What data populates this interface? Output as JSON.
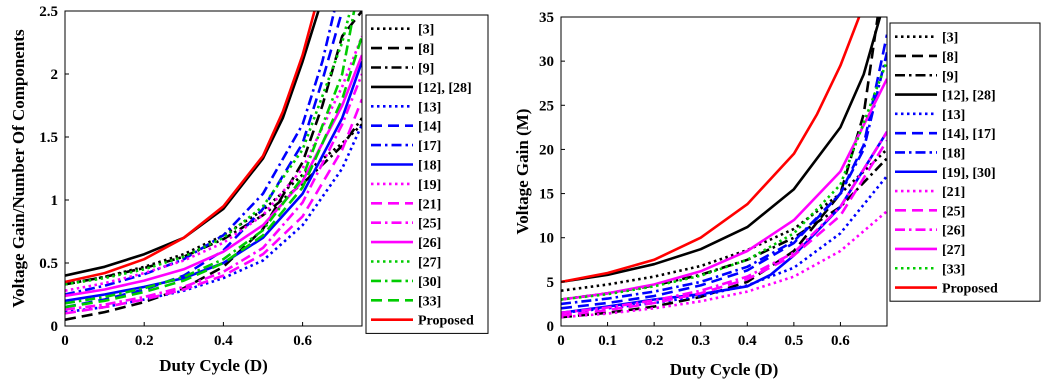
{
  "chart_data": [
    {
      "type": "line",
      "title": "",
      "xlabel": "Duty Cycle (D)",
      "ylabel": "Voltage Gain/Number Of Components",
      "xlim": [
        0,
        0.75
      ],
      "ylim": [
        0,
        2.5
      ],
      "xticks": [
        "0",
        "0.2",
        "0.4",
        "0.6"
      ],
      "xtick_values": [
        0,
        0.2,
        0.4,
        0.6
      ],
      "yticks": [
        "0",
        "0.5",
        "1",
        "1.5",
        "2",
        "2.5"
      ],
      "ytick_values": [
        0,
        0.5,
        1,
        1.5,
        2,
        2.5
      ],
      "grid": false,
      "legend_position": "right, outside",
      "series": [
        {
          "name": "[3]",
          "color": "#000000",
          "dash": "dot",
          "x": [
            0,
            0.1,
            0.2,
            0.3,
            0.4,
            0.5,
            0.6,
            0.7,
            0.75
          ],
          "y": [
            0.33,
            0.39,
            0.47,
            0.57,
            0.72,
            0.92,
            1.2,
            1.45,
            1.6
          ]
        },
        {
          "name": "[8]",
          "color": "#000000",
          "dash": "dash",
          "x": [
            0,
            0.1,
            0.2,
            0.3,
            0.4,
            0.5,
            0.6,
            0.65,
            0.7,
            0.75
          ],
          "y": [
            0.05,
            0.11,
            0.19,
            0.3,
            0.47,
            0.77,
            1.3,
            1.75,
            2.3,
            2.5
          ]
        },
        {
          "name": "[9]",
          "color": "#000000",
          "dash": "dashdot",
          "x": [
            0,
            0.1,
            0.2,
            0.3,
            0.4,
            0.5,
            0.6,
            0.7,
            0.75
          ],
          "y": [
            0.33,
            0.39,
            0.46,
            0.55,
            0.69,
            0.88,
            1.13,
            1.43,
            1.65
          ]
        },
        {
          "name": "[12], [28]",
          "color": "#000000",
          "dash": "solid",
          "x": [
            0,
            0.1,
            0.2,
            0.3,
            0.4,
            0.5,
            0.55,
            0.6,
            0.64
          ],
          "y": [
            0.4,
            0.47,
            0.57,
            0.7,
            0.93,
            1.33,
            1.65,
            2.1,
            2.5
          ]
        },
        {
          "name": "[13]",
          "color": "#0000ff",
          "dash": "dot",
          "x": [
            0,
            0.1,
            0.2,
            0.3,
            0.4,
            0.5,
            0.6,
            0.7,
            0.75
          ],
          "y": [
            0.11,
            0.15,
            0.21,
            0.28,
            0.38,
            0.52,
            0.8,
            1.25,
            1.6
          ]
        },
        {
          "name": "[14]",
          "color": "#0000ff",
          "dash": "dash",
          "x": [
            0,
            0.1,
            0.2,
            0.3,
            0.4,
            0.5,
            0.6,
            0.65,
            0.7
          ],
          "y": [
            0.15,
            0.21,
            0.29,
            0.4,
            0.6,
            0.93,
            1.45,
            1.95,
            2.5
          ]
        },
        {
          "name": "[17]",
          "color": "#0000ff",
          "dash": "dashdot",
          "x": [
            0,
            0.1,
            0.2,
            0.3,
            0.4,
            0.5,
            0.6,
            0.65,
            0.68
          ],
          "y": [
            0.25,
            0.32,
            0.41,
            0.53,
            0.72,
            1.05,
            1.6,
            2.1,
            2.5
          ]
        },
        {
          "name": "[18]",
          "color": "#0000ff",
          "dash": "solid",
          "x": [
            0,
            0.1,
            0.2,
            0.3,
            0.4,
            0.5,
            0.6,
            0.7,
            0.75
          ],
          "y": [
            0.2,
            0.25,
            0.31,
            0.38,
            0.5,
            0.7,
            1.05,
            1.65,
            2.1
          ]
        },
        {
          "name": "[19]",
          "color": "#ff00ff",
          "dash": "dot",
          "x": [
            0,
            0.1,
            0.2,
            0.3,
            0.4,
            0.5,
            0.6,
            0.7,
            0.75
          ],
          "y": [
            0.28,
            0.34,
            0.42,
            0.52,
            0.66,
            0.88,
            1.25,
            1.9,
            2.3
          ]
        },
        {
          "name": "[21]",
          "color": "#ff00ff",
          "dash": "dash",
          "x": [
            0,
            0.1,
            0.2,
            0.3,
            0.4,
            0.5,
            0.6,
            0.7,
            0.75
          ],
          "y": [
            0.1,
            0.15,
            0.21,
            0.29,
            0.4,
            0.57,
            0.87,
            1.4,
            1.8
          ]
        },
        {
          "name": "[25]",
          "color": "#ff00ff",
          "dash": "dashdot",
          "x": [
            0,
            0.1,
            0.2,
            0.3,
            0.4,
            0.5,
            0.6,
            0.7,
            0.75
          ],
          "y": [
            0.13,
            0.17,
            0.23,
            0.31,
            0.43,
            0.62,
            0.98,
            1.6,
            2.0
          ]
        },
        {
          "name": "[26]",
          "color": "#ff00ff",
          "dash": "solid",
          "x": [
            0,
            0.1,
            0.2,
            0.3,
            0.4,
            0.5,
            0.6,
            0.7,
            0.75
          ],
          "y": [
            0.24,
            0.29,
            0.36,
            0.45,
            0.59,
            0.8,
            1.15,
            1.75,
            2.15
          ]
        },
        {
          "name": "[27]",
          "color": "#00cc00",
          "dash": "dot",
          "x": [
            0,
            0.1,
            0.2,
            0.3,
            0.4,
            0.5,
            0.6,
            0.7,
            0.72
          ],
          "y": [
            0.33,
            0.38,
            0.45,
            0.55,
            0.7,
            0.95,
            1.4,
            2.25,
            2.5
          ]
        },
        {
          "name": "[30]",
          "color": "#00cc00",
          "dash": "dashdot",
          "x": [
            0,
            0.1,
            0.2,
            0.3,
            0.4,
            0.5,
            0.6,
            0.7,
            0.73
          ],
          "y": [
            0.18,
            0.23,
            0.3,
            0.39,
            0.53,
            0.76,
            1.18,
            2.0,
            2.5
          ]
        },
        {
          "name": "[33]",
          "color": "#00cc00",
          "dash": "dash",
          "x": [
            0,
            0.1,
            0.2,
            0.3,
            0.4,
            0.5,
            0.6,
            0.7,
            0.75
          ],
          "y": [
            0.15,
            0.2,
            0.27,
            0.36,
            0.5,
            0.72,
            1.1,
            1.8,
            2.3
          ]
        },
        {
          "name": "Proposed",
          "color": "#ff0000",
          "dash": "solid",
          "x": [
            0,
            0.1,
            0.2,
            0.3,
            0.4,
            0.5,
            0.55,
            0.6,
            0.63
          ],
          "y": [
            0.35,
            0.42,
            0.53,
            0.7,
            0.95,
            1.35,
            1.7,
            2.15,
            2.5
          ]
        }
      ]
    },
    {
      "type": "line",
      "title": "",
      "xlabel": "Duty Cycle (D)",
      "ylabel": "Voltage Gain (M)",
      "xlim": [
        0,
        0.7
      ],
      "ylim": [
        0,
        35
      ],
      "xticks": [
        "0",
        "0.1",
        "0.2",
        "0.3",
        "0.4",
        "0.5",
        "0.6"
      ],
      "xtick_values": [
        0,
        0.1,
        0.2,
        0.3,
        0.4,
        0.5,
        0.6
      ],
      "yticks": [
        "0",
        "5",
        "10",
        "15",
        "20",
        "25",
        "30",
        "35"
      ],
      "ytick_values": [
        0,
        5,
        10,
        15,
        20,
        25,
        30,
        35
      ],
      "grid": false,
      "legend_position": "right, outside",
      "series": [
        {
          "name": "[3]",
          "color": "#000000",
          "dash": "dot",
          "x": [
            0,
            0.1,
            0.2,
            0.3,
            0.4,
            0.5,
            0.6,
            0.7
          ],
          "y": [
            4,
            4.7,
            5.6,
            6.8,
            8.6,
            11,
            15,
            20
          ]
        },
        {
          "name": "[8]",
          "color": "#000000",
          "dash": "dash",
          "x": [
            0,
            0.1,
            0.2,
            0.3,
            0.4,
            0.5,
            0.6,
            0.65,
            0.68
          ],
          "y": [
            1,
            1.5,
            2.2,
            3.3,
            5,
            8.5,
            15,
            24,
            35
          ]
        },
        {
          "name": "[9]",
          "color": "#000000",
          "dash": "dashdot",
          "x": [
            0,
            0.1,
            0.2,
            0.3,
            0.4,
            0.5,
            0.6,
            0.7
          ],
          "y": [
            3,
            3.7,
            4.6,
            5.8,
            7.5,
            10,
            13.5,
            19
          ]
        },
        {
          "name": "[12], [28]",
          "color": "#000000",
          "dash": "solid",
          "x": [
            0,
            0.1,
            0.2,
            0.3,
            0.4,
            0.5,
            0.6,
            0.65,
            0.685
          ],
          "y": [
            5,
            5.8,
            7,
            8.7,
            11.2,
            15.5,
            22.5,
            28.5,
            35
          ]
        },
        {
          "name": "[13]",
          "color": "#0000ff",
          "dash": "dot",
          "x": [
            0,
            0.1,
            0.2,
            0.3,
            0.4,
            0.5,
            0.6,
            0.7
          ],
          "y": [
            1.5,
            2,
            2.6,
            3.4,
            4.6,
            6.6,
            10.5,
            17
          ]
        },
        {
          "name": "[14], [17]",
          "color": "#0000ff",
          "dash": "dash",
          "x": [
            0,
            0.1,
            0.2,
            0.3,
            0.4,
            0.5,
            0.6,
            0.65,
            0.7
          ],
          "y": [
            2,
            2.6,
            3.4,
            4.6,
            6.3,
            9.4,
            15,
            20.5,
            33
          ]
        },
        {
          "name": "[18]",
          "color": "#0000ff",
          "dash": "dashdot",
          "x": [
            0,
            0.1,
            0.2,
            0.3,
            0.4,
            0.5,
            0.6,
            0.65,
            0.7
          ],
          "y": [
            2.5,
            3.1,
            3.9,
            5,
            6.7,
            9.6,
            15,
            20,
            31
          ]
        },
        {
          "name": "[19], [30]",
          "color": "#0000ff",
          "dash": "solid",
          "x": [
            0,
            0.1,
            0.2,
            0.3,
            0.4,
            0.45,
            0.5,
            0.6,
            0.7
          ],
          "y": [
            1.5,
            2.2,
            3,
            3.6,
            4.5,
            5.8,
            8,
            13.5,
            22
          ]
        },
        {
          "name": "[21]",
          "color": "#ff00ff",
          "dash": "dot",
          "x": [
            0,
            0.1,
            0.2,
            0.3,
            0.4,
            0.5,
            0.6,
            0.7
          ],
          "y": [
            1,
            1.4,
            2,
            2.8,
            3.9,
            5.6,
            8.5,
            13
          ]
        },
        {
          "name": "[25]",
          "color": "#ff00ff",
          "dash": "dash",
          "x": [
            0,
            0.1,
            0.2,
            0.3,
            0.4,
            0.5,
            0.6,
            0.7
          ],
          "y": [
            1.2,
            1.8,
            2.6,
            3.7,
            5.3,
            8,
            12.5,
            21
          ]
        },
        {
          "name": "[26]",
          "color": "#ff00ff",
          "dash": "dashdot",
          "x": [
            0,
            0.1,
            0.2,
            0.3,
            0.4,
            0.5,
            0.6,
            0.7
          ],
          "y": [
            1.5,
            2.1,
            2.9,
            4,
            5.6,
            8.3,
            13.5,
            22
          ]
        },
        {
          "name": "[27]",
          "color": "#ff00ff",
          "dash": "solid",
          "x": [
            0,
            0.1,
            0.2,
            0.3,
            0.4,
            0.5,
            0.6,
            0.7
          ],
          "y": [
            3,
            3.7,
            4.7,
            6.2,
            8.5,
            12,
            17.5,
            28
          ]
        },
        {
          "name": "[33]",
          "color": "#00cc00",
          "dash": "dot",
          "x": [
            0,
            0.1,
            0.2,
            0.3,
            0.4,
            0.5,
            0.6,
            0.7
          ],
          "y": [
            3,
            3.6,
            4.5,
            5.7,
            7.5,
            10.5,
            16,
            30
          ]
        },
        {
          "name": "Proposed",
          "color": "#ff0000",
          "dash": "solid",
          "x": [
            0,
            0.1,
            0.2,
            0.3,
            0.4,
            0.5,
            0.55,
            0.6,
            0.64
          ],
          "y": [
            5,
            6,
            7.5,
            10,
            13.8,
            19.5,
            24,
            29.5,
            35
          ]
        }
      ]
    }
  ]
}
